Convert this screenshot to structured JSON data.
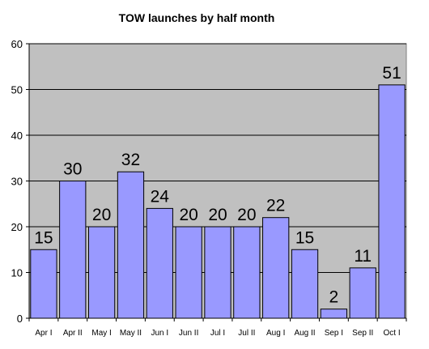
{
  "chart_data": {
    "type": "bar",
    "title": "TOW launches by half month",
    "categories": [
      "Apr I",
      "Apr II",
      "May I",
      "May II",
      "Jun I",
      "Jun II",
      "Jul I",
      "Jul II",
      "Aug I",
      "Aug II",
      "Sep I",
      "Sep II",
      "Oct I"
    ],
    "values": [
      15,
      30,
      20,
      32,
      24,
      20,
      20,
      20,
      22,
      15,
      2,
      11,
      51
    ],
    "ylim": [
      0,
      60
    ],
    "yticks": [
      0,
      10,
      20,
      30,
      40,
      50,
      60
    ],
    "xlabel": "",
    "ylabel": "",
    "grid": true,
    "legend": "none",
    "colors": {
      "bar_fill": "#9999ff",
      "bar_stroke": "#000000",
      "plot_background": "#c0c0c0",
      "gridline": "#000000"
    }
  }
}
